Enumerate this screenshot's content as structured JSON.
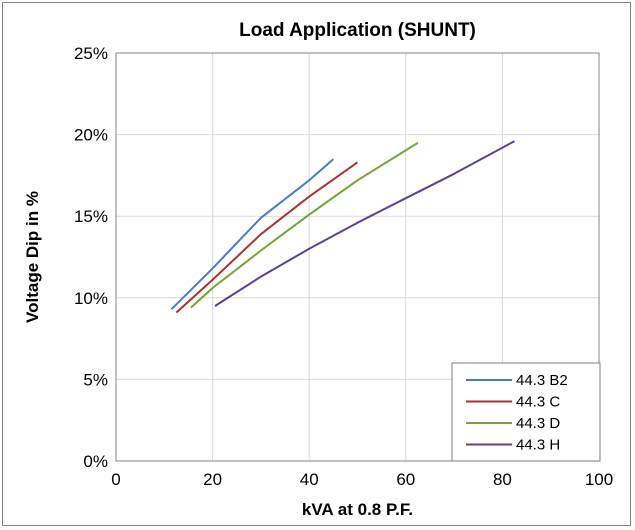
{
  "chart_data": {
    "type": "line",
    "title": "Load Application (SHUNT)",
    "xlabel": "kVA at 0.8 P.F.",
    "ylabel": "Voltage Dip in %",
    "xlim": [
      0,
      100
    ],
    "ylim": [
      0,
      25
    ],
    "x_ticks": [
      "0",
      "20",
      "40",
      "60",
      "80",
      "100"
    ],
    "y_ticks": [
      "0%",
      "5%",
      "10%",
      "15%",
      "20%",
      "25%"
    ],
    "grid": true,
    "legend_position": "bottom-right",
    "series": [
      {
        "name": "44.3 B2",
        "color": "#4a7ebb",
        "x": [
          11.5,
          20,
          30,
          40,
          45
        ],
        "y": [
          9.3,
          11.8,
          14.9,
          17.2,
          18.5
        ]
      },
      {
        "name": "44.3 C",
        "color": "#a33533",
        "x": [
          12.5,
          20,
          30,
          40,
          50
        ],
        "y": [
          9.1,
          11.1,
          13.9,
          16.2,
          18.3
        ]
      },
      {
        "name": "44.3 D",
        "color": "#77a13a",
        "x": [
          15.5,
          20,
          30,
          40,
          50,
          62.5
        ],
        "y": [
          9.4,
          10.6,
          12.9,
          15.1,
          17.2,
          19.5
        ]
      },
      {
        "name": "44.3 H",
        "color": "#5a4589",
        "x": [
          20.5,
          30,
          40,
          50,
          60,
          70,
          82.5
        ],
        "y": [
          9.5,
          11.3,
          13.0,
          14.6,
          16.1,
          17.6,
          19.6
        ]
      }
    ]
  }
}
